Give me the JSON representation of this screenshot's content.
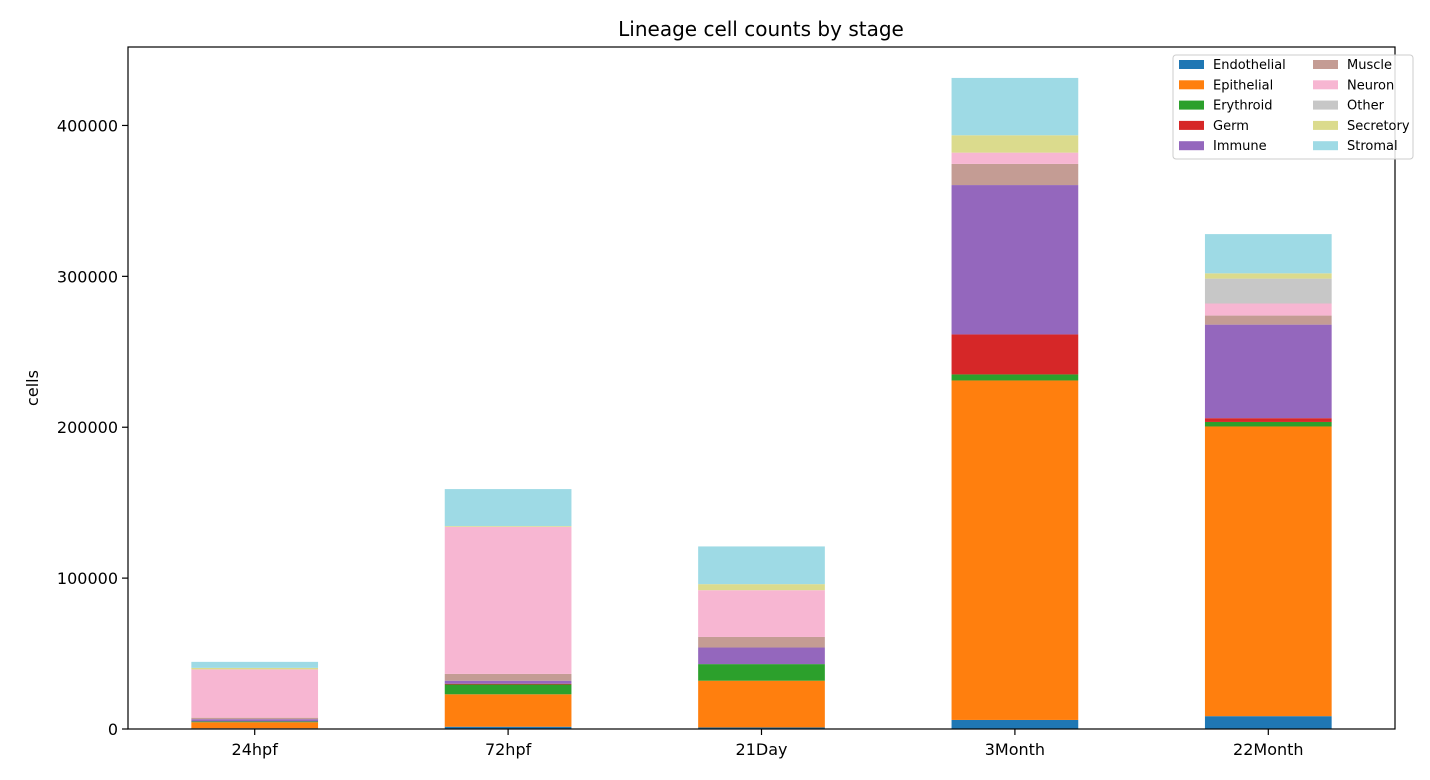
{
  "chart_data": {
    "type": "bar",
    "stacked": true,
    "title": "Lineage cell counts by stage",
    "xlabel": "",
    "ylabel": "cells",
    "ylim": [
      0,
      452000
    ],
    "yticks": [
      0,
      100000,
      200000,
      300000,
      400000
    ],
    "categories": [
      "24hpf",
      "72hpf",
      "21Day",
      "3Month",
      "22Month"
    ],
    "legend_position": "top-right",
    "legend_columns": 2,
    "grid": false,
    "series": [
      {
        "name": "Endothelial",
        "color": "#1f77b4",
        "values": [
          500,
          1500,
          1000,
          6000,
          8500
        ]
      },
      {
        "name": "Epithelial",
        "color": "#ff7f0e",
        "values": [
          4000,
          21500,
          31000,
          225000,
          192000
        ]
      },
      {
        "name": "Erythroid",
        "color": "#2ca02c",
        "values": [
          500,
          6500,
          11000,
          4000,
          3000
        ]
      },
      {
        "name": "Germ",
        "color": "#d62728",
        "values": [
          0,
          500,
          0,
          26500,
          2500
        ]
      },
      {
        "name": "Immune",
        "color": "#9467bd",
        "values": [
          1500,
          2000,
          11000,
          99000,
          62000
        ]
      },
      {
        "name": "Muscle",
        "color": "#c49c94",
        "values": [
          1000,
          4500,
          7000,
          14000,
          6000
        ]
      },
      {
        "name": "Neuron",
        "color": "#f7b6d2",
        "values": [
          32000,
          97500,
          31000,
          7500,
          8000
        ]
      },
      {
        "name": "Other",
        "color": "#c7c7c7",
        "values": [
          0,
          0,
          0,
          0,
          16500
        ]
      },
      {
        "name": "Secretory",
        "color": "#dbdb8d",
        "values": [
          1000,
          500,
          4000,
          11500,
          3500
        ]
      },
      {
        "name": "Stromal",
        "color": "#9edae5",
        "values": [
          4000,
          24500,
          25000,
          38000,
          26000
        ]
      }
    ]
  }
}
